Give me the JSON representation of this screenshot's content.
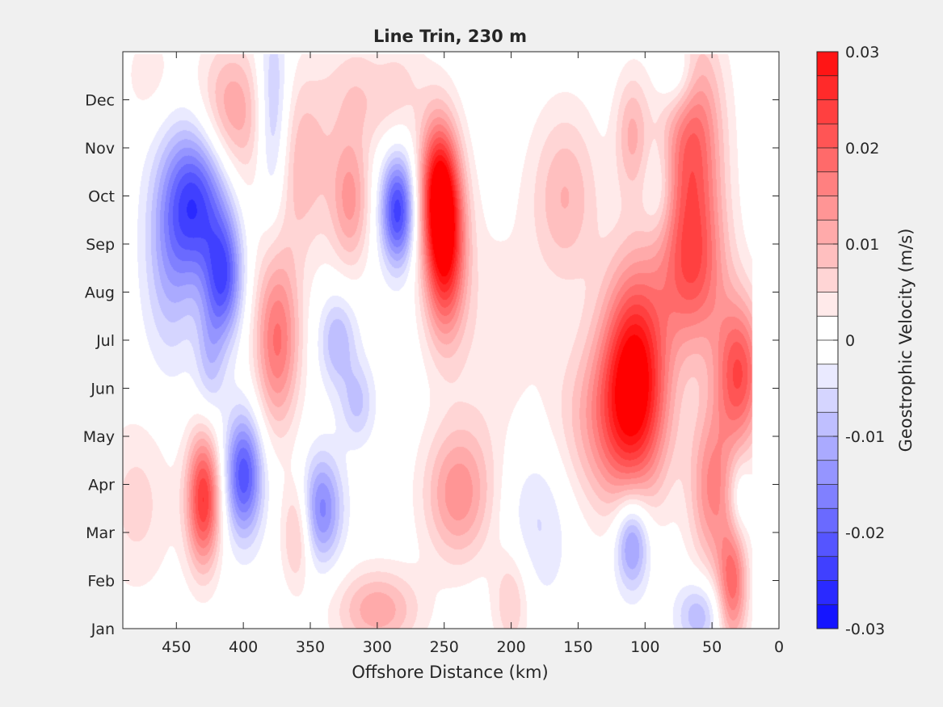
{
  "chart_data": {
    "type": "filled-contour",
    "title": "Line Trin, 230 m",
    "xlabel": "Offshore Distance (km)",
    "ylabel": "",
    "xlim": [
      490,
      0
    ],
    "x_reversed": true,
    "xticks": [
      450,
      400,
      350,
      300,
      250,
      200,
      150,
      100,
      50,
      0
    ],
    "ylim": [
      0,
      12
    ],
    "yticks": [
      0,
      1,
      2,
      3,
      4,
      5,
      6,
      7,
      8,
      9,
      10,
      11
    ],
    "ytick_labels": [
      "Jan",
      "Feb",
      "Mar",
      "Apr",
      "May",
      "Jun",
      "Jul",
      "Aug",
      "Sep",
      "Oct",
      "Nov",
      "Dec"
    ],
    "data_x_range": [
      490,
      20
    ],
    "data_y_range": [
      0,
      11.95
    ],
    "colormap": "blue-white-red",
    "color_min": "#0000ff",
    "color_zero": "#ffffff",
    "color_max": "#ff0000",
    "contour_step": 0.0025,
    "colorbar": {
      "label": "Geostrophic Velocity (m/s)",
      "clim": [
        -0.03,
        0.03
      ],
      "ticks": [
        0.03,
        0.02,
        0.01,
        0,
        -0.01,
        -0.02,
        -0.03
      ],
      "tick_labels": [
        "0.03",
        "0.02",
        "0.01",
        "0",
        "-0.01",
        "-0.02",
        "-0.03"
      ]
    },
    "features": [
      {
        "x": 435,
        "y": 8.9,
        "sx": 16,
        "sy": 1.1,
        "value": -0.022
      },
      {
        "x": 415,
        "y": 7.3,
        "sx": 10,
        "sy": 0.9,
        "value": -0.02
      },
      {
        "x": 455,
        "y": 7.8,
        "sx": 14,
        "sy": 1.6,
        "value": -0.01
      },
      {
        "x": 425,
        "y": 5.6,
        "sx": 8,
        "sy": 0.9,
        "value": -0.008
      },
      {
        "x": 400,
        "y": 3.2,
        "sx": 10,
        "sy": 0.9,
        "value": -0.022
      },
      {
        "x": 285,
        "y": 8.7,
        "sx": 9,
        "sy": 0.8,
        "value": -0.024
      },
      {
        "x": 378,
        "y": 10.5,
        "sx": 9,
        "sy": 1.5,
        "value": -0.014
      },
      {
        "x": 342,
        "y": 2.5,
        "sx": 11,
        "sy": 0.8,
        "value": -0.016
      },
      {
        "x": 330,
        "y": 6.0,
        "sx": 10,
        "sy": 0.7,
        "value": -0.01
      },
      {
        "x": 315,
        "y": 4.7,
        "sx": 9,
        "sy": 0.6,
        "value": -0.008
      },
      {
        "x": 110,
        "y": 1.8,
        "sx": 9,
        "sy": 0.7,
        "value": -0.016
      },
      {
        "x": 75,
        "y": 11.5,
        "sx": 10,
        "sy": 0.6,
        "value": -0.01
      },
      {
        "x": 180,
        "y": 2.3,
        "sx": 18,
        "sy": 1.2,
        "value": -0.006
      },
      {
        "x": 300,
        "y": 11.5,
        "sx": 12,
        "sy": 0.6,
        "value": -0.004
      },
      {
        "x": 60,
        "y": 0.3,
        "sx": 12,
        "sy": 0.5,
        "value": -0.01
      },
      {
        "x": 30,
        "y": 2.7,
        "sx": 6,
        "sy": 0.6,
        "value": -0.006
      },
      {
        "x": 90,
        "y": 9.1,
        "sx": 8,
        "sy": 0.7,
        "value": -0.005
      },
      {
        "x": 250,
        "y": 8.0,
        "sx": 11,
        "sy": 1.3,
        "value": 0.03
      },
      {
        "x": 255,
        "y": 9.3,
        "sx": 10,
        "sy": 1.0,
        "value": 0.02
      },
      {
        "x": 430,
        "y": 2.7,
        "sx": 9,
        "sy": 1.0,
        "value": 0.025
      },
      {
        "x": 375,
        "y": 6.0,
        "sx": 12,
        "sy": 1.3,
        "value": 0.018
      },
      {
        "x": 410,
        "y": 10.8,
        "sx": 18,
        "sy": 1.0,
        "value": 0.012
      },
      {
        "x": 360,
        "y": 9.7,
        "sx": 22,
        "sy": 1.4,
        "value": 0.01
      },
      {
        "x": 320,
        "y": 8.9,
        "sx": 10,
        "sy": 1.0,
        "value": 0.012
      },
      {
        "x": 300,
        "y": 11.3,
        "sx": 22,
        "sy": 0.8,
        "value": 0.01
      },
      {
        "x": 108,
        "y": 5.4,
        "sx": 17,
        "sy": 1.6,
        "value": 0.028
      },
      {
        "x": 125,
        "y": 4.3,
        "sx": 28,
        "sy": 1.3,
        "value": 0.013
      },
      {
        "x": 65,
        "y": 10.1,
        "sx": 16,
        "sy": 1.6,
        "value": 0.02
      },
      {
        "x": 65,
        "y": 7.4,
        "sx": 18,
        "sy": 1.2,
        "value": 0.018
      },
      {
        "x": 30,
        "y": 5.3,
        "sx": 13,
        "sy": 1.1,
        "value": 0.022
      },
      {
        "x": 50,
        "y": 2.9,
        "sx": 12,
        "sy": 1.2,
        "value": 0.015
      },
      {
        "x": 35,
        "y": 0.9,
        "sx": 8,
        "sy": 0.9,
        "value": 0.018
      },
      {
        "x": 160,
        "y": 9.0,
        "sx": 18,
        "sy": 1.3,
        "value": 0.01
      },
      {
        "x": 110,
        "y": 10.3,
        "sx": 9,
        "sy": 0.9,
        "value": 0.01
      },
      {
        "x": 240,
        "y": 2.8,
        "sx": 18,
        "sy": 1.0,
        "value": 0.014
      },
      {
        "x": 300,
        "y": 0.4,
        "sx": 22,
        "sy": 0.6,
        "value": 0.012
      },
      {
        "x": 360,
        "y": 2.0,
        "sx": 8,
        "sy": 0.8,
        "value": 0.01
      },
      {
        "x": 200,
        "y": 0.6,
        "sx": 10,
        "sy": 0.8,
        "value": 0.008
      },
      {
        "x": 480,
        "y": 2.6,
        "sx": 20,
        "sy": 1.3,
        "value": 0.006
      },
      {
        "x": 470,
        "y": 11.5,
        "sx": 15,
        "sy": 0.8,
        "value": 0.004
      },
      {
        "x": 215,
        "y": 6.0,
        "sx": 25,
        "sy": 2.0,
        "value": 0.004
      }
    ]
  }
}
